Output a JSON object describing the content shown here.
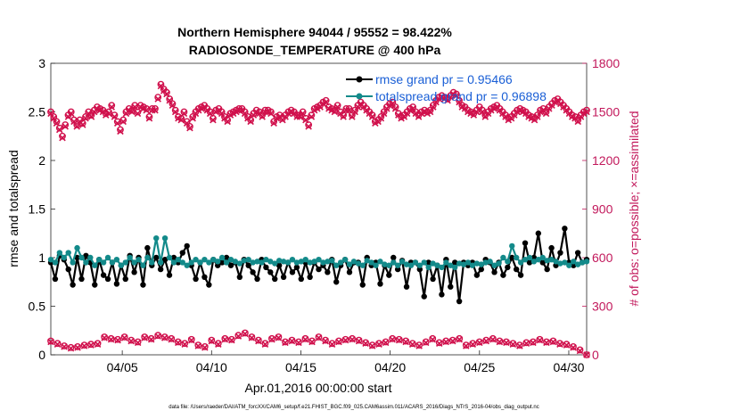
{
  "chart_data": {
    "type": "line",
    "title": "Northern Hemisphere 94044 / 95552 = 98.422%",
    "subtitle": "RADIOSONDE_TEMPERATURE @ 400 hPa",
    "xlabel": "Apr.01,2016 00:00:00 start",
    "ylabel_left": "rmse and totalspread",
    "ylabel_right": "# of obs: o=possible; ×=assimilated",
    "footer": "data file: /Users/raeder/DAI/ATM_forcXX/CAM6_setup/f.e21.FHIST_BGC.f09_025.CAM6assim.011/ACARS_2016/Diags_NTrS_2016-04/obs_diag_output.nc",
    "x_ticks": [
      "04/05",
      "04/10",
      "04/15",
      "04/20",
      "04/25",
      "04/30"
    ],
    "x_tick_days": [
      5,
      10,
      15,
      20,
      25,
      30
    ],
    "xlim": [
      1,
      31
    ],
    "ylim_left": [
      0,
      3
    ],
    "yticks_left": [
      "0",
      "0.5",
      "1",
      "1.5",
      "2",
      "2.5",
      "3"
    ],
    "ylim_right": [
      0,
      1800
    ],
    "yticks_right": [
      "0",
      "300",
      "600",
      "900",
      "1200",
      "1500",
      "1800"
    ],
    "grid": false,
    "colors": {
      "rmse": "#000000",
      "spread": "#138a8a",
      "obs": "#d0104c",
      "legend_text": "#1a5fd6",
      "right_axis": "#c2185b"
    },
    "legend": [
      {
        "label": "rmse grand pr = 0.95466",
        "series": "rmse"
      },
      {
        "label": "totalspread grand pr = 0.96898",
        "series": "spread"
      }
    ],
    "x_step_days": 0.25,
    "series": [
      {
        "name": "rmse",
        "axis": "left",
        "values": [
          0.95,
          0.78,
          1.02,
          0.98,
          0.88,
          0.72,
          1.0,
          0.78,
          1.02,
          0.95,
          0.72,
          0.98,
          0.82,
          0.78,
          0.95,
          0.73,
          0.92,
          0.78,
          1.02,
          0.85,
          1.0,
          0.72,
          1.1,
          0.92,
          1.0,
          0.88,
          0.98,
          0.82,
          1.0,
          0.95,
          1.05,
          1.12,
          0.92,
          0.78,
          0.95,
          0.8,
          0.72,
          0.98,
          0.92,
          0.95,
          1.0,
          0.92,
          0.95,
          0.8,
          0.98,
          0.92,
          0.85,
          0.78,
          0.98,
          0.9,
          0.85,
          0.78,
          0.92,
          0.8,
          0.95,
          0.85,
          0.9,
          0.78,
          0.95,
          0.8,
          0.95,
          0.88,
          0.92,
          0.85,
          0.98,
          0.75,
          0.92,
          0.98,
          0.85,
          0.95,
          0.95,
          0.72,
          1.0,
          0.92,
          0.95,
          0.73,
          0.92,
          0.82,
          1.0,
          0.88,
          0.97,
          0.7,
          0.95,
          0.95,
          0.88,
          0.6,
          0.95,
          0.78,
          0.92,
          0.62,
          0.98,
          0.7,
          0.95,
          0.55,
          0.95,
          0.92,
          0.95,
          0.82,
          0.88,
          0.98,
          0.95,
          0.85,
          0.95,
          0.82,
          0.9,
          1.0,
          0.88,
          0.82,
          1.15,
          0.95,
          1.0,
          1.25,
          0.95,
          0.88,
          1.1,
          0.92,
          1.05,
          1.3,
          0.95,
          0.92,
          1.05,
          0.95,
          0.98
        ]
      },
      {
        "name": "totalspread",
        "axis": "left",
        "values": [
          0.98,
          0.95,
          1.05,
          1.0,
          1.05,
          0.95,
          1.1,
          1.0,
          0.95,
          1.0,
          0.92,
          0.98,
          0.95,
          1.0,
          0.95,
          0.98,
          0.92,
          0.95,
          1.0,
          0.95,
          0.98,
          0.92,
          1.0,
          0.95,
          1.2,
          0.95,
          1.2,
          1.0,
          0.95,
          0.98,
          0.95,
          0.92,
          0.95,
          0.98,
          0.95,
          0.98,
          0.95,
          0.98,
          0.96,
          1.0,
          0.95,
          0.98,
          0.96,
          0.94,
          0.97,
          0.98,
          0.95,
          0.96,
          0.95,
          0.98,
          0.96,
          0.94,
          0.97,
          0.96,
          0.95,
          0.98,
          0.95,
          0.96,
          0.98,
          0.95,
          0.96,
          0.98,
          0.95,
          0.96,
          0.97,
          0.92,
          0.95,
          0.98,
          0.93,
          0.96,
          0.94,
          0.92,
          0.97,
          0.95,
          0.92,
          0.96,
          0.93,
          0.92,
          0.95,
          0.92,
          0.96,
          0.93,
          0.92,
          0.95,
          0.92,
          0.95,
          0.9,
          0.94,
          0.92,
          0.9,
          0.95,
          0.92,
          0.9,
          0.94,
          0.93,
          0.95,
          0.92,
          0.94,
          0.93,
          0.95,
          0.96,
          0.92,
          0.94,
          1.0,
          0.96,
          1.12,
          1.0,
          0.95,
          0.98,
          1.0,
          0.96,
          0.98,
          1.0,
          0.97,
          0.98,
          0.96,
          0.94,
          0.95,
          0.92,
          0.96,
          0.93,
          0.95,
          0.96
        ]
      },
      {
        "name": "obs_possible",
        "axis": "right",
        "values": [
          1500,
          1470,
          1440,
          1400,
          1350,
          1420,
          1480,
          1500,
          1450,
          1420,
          1450,
          1430,
          1470,
          1500,
          1480,
          1510,
          1530,
          1520,
          1510,
          1490,
          1500,
          1540,
          1480,
          1440,
          1390,
          1450,
          1500,
          1520,
          1510,
          1540,
          1500,
          1540,
          1530,
          1520,
          1470,
          1520,
          1520,
          1590,
          1670,
          1640,
          1620,
          1580,
          1550,
          1510,
          1470,
          1460,
          1500,
          1440,
          1410,
          1470,
          1500,
          1520,
          1530,
          1540,
          1520,
          1500,
          1460,
          1510,
          1520,
          1500,
          1470,
          1450,
          1490,
          1500,
          1510,
          1520,
          1520,
          1500,
          1470,
          1450,
          1490,
          1510,
          1500,
          1480,
          1510,
          1510,
          1500,
          1440,
          1470,
          1480,
          1460,
          1480,
          1500,
          1510,
          1500,
          1480,
          1480,
          1500,
          1460,
          1420,
          1480,
          1520,
          1530,
          1540,
          1560,
          1570,
          1530,
          1520,
          1510,
          1540,
          1500,
          1480,
          1520,
          1520,
          1480,
          1510,
          1540,
          1560,
          1540,
          1520,
          1500,
          1480,
          1440,
          1450,
          1470,
          1500,
          1530,
          1550,
          1560,
          1530,
          1490,
          1470,
          1480,
          1500,
          1520,
          1530,
          1500,
          1480,
          1500,
          1510,
          1500,
          1510,
          1540,
          1570,
          1590,
          1600,
          1590,
          1580,
          1600,
          1620,
          1610,
          1570,
          1540,
          1530,
          1510,
          1500,
          1490,
          1510,
          1530,
          1510,
          1480,
          1500,
          1520,
          1530,
          1540,
          1520,
          1500,
          1480,
          1460,
          1470,
          1490,
          1510,
          1520,
          1510,
          1500,
          1480,
          1470,
          1460,
          1480,
          1510,
          1520,
          1500,
          1530,
          1550,
          1570,
          1580,
          1560,
          1540,
          1520,
          1500,
          1480,
          1470,
          1450,
          1480,
          1500,
          1510
        ]
      },
      {
        "name": "obs_assimilated",
        "axis": "right",
        "values": [
          1490,
          1460,
          1430,
          1390,
          1340,
          1410,
          1470,
          1490,
          1440,
          1410,
          1440,
          1420,
          1460,
          1490,
          1470,
          1500,
          1520,
          1510,
          1500,
          1480,
          1490,
          1530,
          1470,
          1430,
          1380,
          1440,
          1490,
          1510,
          1500,
          1530,
          1490,
          1530,
          1520,
          1510,
          1460,
          1510,
          1510,
          1580,
          1660,
          1630,
          1610,
          1570,
          1540,
          1500,
          1460,
          1450,
          1490,
          1430,
          1400,
          1460,
          1490,
          1510,
          1520,
          1530,
          1510,
          1490,
          1450,
          1500,
          1510,
          1490,
          1460,
          1440,
          1480,
          1490,
          1500,
          1510,
          1510,
          1490,
          1460,
          1440,
          1480,
          1500,
          1490,
          1470,
          1500,
          1500,
          1490,
          1430,
          1460,
          1470,
          1450,
          1470,
          1490,
          1500,
          1490,
          1470,
          1470,
          1490,
          1450,
          1410,
          1470,
          1510,
          1520,
          1530,
          1550,
          1560,
          1520,
          1510,
          1500,
          1530,
          1490,
          1470,
          1510,
          1510,
          1470,
          1500,
          1530,
          1550,
          1530,
          1510,
          1490,
          1470,
          1430,
          1440,
          1460,
          1490,
          1520,
          1540,
          1550,
          1520,
          1480,
          1460,
          1470,
          1490,
          1510,
          1520,
          1490,
          1470,
          1490,
          1500,
          1490,
          1500,
          1530,
          1560,
          1580,
          1590,
          1580,
          1570,
          1590,
          1610,
          1600,
          1560,
          1530,
          1520,
          1500,
          1490,
          1480,
          1500,
          1520,
          1500,
          1470,
          1490,
          1510,
          1520,
          1530,
          1510,
          1490,
          1470,
          1450,
          1460,
          1480,
          1500,
          1510,
          1500,
          1490,
          1470,
          1460,
          1450,
          1470,
          1500,
          1510,
          1490,
          1520,
          1540,
          1560,
          1570,
          1550,
          1530,
          1510,
          1490,
          1470,
          1460,
          1440,
          1470,
          1490,
          1500
        ]
      },
      {
        "name": "obs_low_possible",
        "axis": "right",
        "values": [
          85,
          70,
          55,
          45,
          50,
          60,
          65,
          70,
          110,
          100,
          95,
          110,
          90,
          80,
          110,
          100,
          120,
          110,
          100,
          80,
          70,
          95,
          60,
          50,
          90,
          70,
          100,
          95,
          120,
          135,
          110,
          90,
          70,
          100,
          110,
          80,
          90,
          80,
          100,
          85,
          110,
          90,
          70,
          85,
          95,
          100,
          90,
          75,
          60,
          70,
          80,
          100,
          95,
          85,
          70,
          60,
          80,
          100,
          75,
          85,
          90,
          100,
          60,
          70,
          80,
          90,
          100,
          85,
          80,
          70,
          60,
          75,
          80,
          95,
          80,
          85,
          70,
          65,
          50,
          30,
          0
        ]
      },
      {
        "name": "obs_low_assimilated",
        "axis": "right",
        "values": [
          80,
          65,
          50,
          40,
          45,
          55,
          60,
          65,
          105,
          95,
          90,
          105,
          85,
          75,
          105,
          95,
          115,
          105,
          95,
          75,
          65,
          90,
          55,
          45,
          85,
          65,
          95,
          90,
          115,
          130,
          105,
          85,
          65,
          95,
          105,
          75,
          85,
          75,
          95,
          80,
          105,
          85,
          65,
          80,
          90,
          95,
          85,
          70,
          55,
          65,
          75,
          95,
          90,
          80,
          65,
          55,
          75,
          95,
          70,
          80,
          85,
          95,
          55,
          65,
          75,
          85,
          95,
          80,
          75,
          65,
          55,
          70,
          75,
          90,
          75,
          80,
          65,
          60,
          45,
          25,
          0
        ]
      }
    ]
  }
}
